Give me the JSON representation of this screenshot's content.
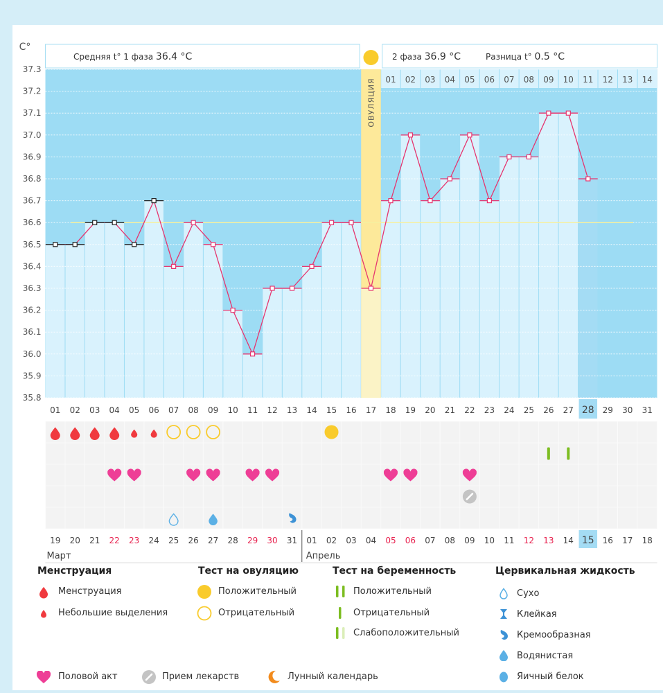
{
  "chart_data": {
    "type": "line",
    "ylabel": "C°",
    "ylim": [
      35.8,
      37.3
    ],
    "yticks": [
      "37.3",
      "37.2",
      "37.1",
      "37.0",
      "36.9",
      "36.8",
      "36.7",
      "36.6",
      "36.5",
      "36.4",
      "36.3",
      "36.2",
      "36.1",
      "36.0",
      "35.9",
      "35.8"
    ],
    "cycle_days": [
      "01",
      "02",
      "03",
      "04",
      "05",
      "06",
      "07",
      "08",
      "09",
      "10",
      "11",
      "12",
      "13",
      "14",
      "15",
      "16",
      "17",
      "18",
      "19",
      "20",
      "21",
      "22",
      "23",
      "24",
      "25",
      "26",
      "27",
      "28",
      "29",
      "30",
      "31"
    ],
    "temperatures": [
      36.5,
      36.5,
      36.6,
      36.6,
      36.5,
      36.7,
      36.4,
      36.6,
      36.5,
      36.2,
      36.0,
      36.3,
      36.3,
      36.4,
      36.6,
      36.6,
      36.3,
      36.7,
      37.0,
      36.7,
      36.8,
      37.0,
      36.7,
      36.9,
      36.9,
      37.1,
      37.1,
      36.8
    ],
    "coverline": 36.6,
    "ovulation_day": "17",
    "ovulation_label": "ОВУЛЯЦИЯ",
    "phase1_label": "Средняя t° 1 фаза",
    "phase1_value": "36.4 °C",
    "phase2_label": "2 фаза",
    "phase2_value": "36.9 °C",
    "diff_label": "Разница t°",
    "diff_value": "0.5 °C",
    "phase2_days": [
      "01",
      "02",
      "03",
      "04",
      "05",
      "06",
      "07",
      "08",
      "09",
      "10",
      "11",
      "12",
      "13",
      "14"
    ],
    "today_cycle_day": "28",
    "calendar_dates": [
      "19",
      "20",
      "21",
      "22",
      "23",
      "24",
      "25",
      "26",
      "27",
      "28",
      "29",
      "30",
      "31",
      "01",
      "02",
      "03",
      "04",
      "05",
      "06",
      "07",
      "08",
      "09",
      "10",
      "11",
      "12",
      "13",
      "14",
      "15",
      "16",
      "17",
      "18"
    ],
    "red_dates": [
      "22",
      "23",
      "29",
      "30",
      "05",
      "06",
      "12",
      "13"
    ],
    "today_date": "15",
    "month_march": "Март",
    "month_april": "Апрель",
    "menstruation": {
      "heavy": [
        "01",
        "02",
        "03",
        "04"
      ],
      "light": [
        "05",
        "06"
      ]
    },
    "ovulation_test": {
      "positive": [
        "15"
      ],
      "negative": [
        "07",
        "08",
        "09"
      ]
    },
    "pregnancy_test": {
      "negative": [
        "26",
        "27"
      ]
    },
    "intercourse": [
      "04",
      "05",
      "08",
      "09",
      "11",
      "12",
      "18",
      "19",
      "22"
    ],
    "medication": [
      "22"
    ],
    "cervical_fluid": {
      "dry": [
        "07"
      ],
      "watery": [
        "09"
      ],
      "creamy": [
        "13"
      ]
    },
    "colors": {
      "phase_bg": "#9ddcf4",
      "bar": "#d9f2fd",
      "today_bar": "#a4dcf4",
      "line": "#e6356f",
      "ovulation": "#fde99a",
      "coverline": "#f6f0a0",
      "blood": "#f03a3f",
      "heart": "#ee3e96",
      "green": "#7cbd21",
      "water": "#5bb0e5"
    }
  },
  "legend": {
    "menstruation": {
      "title": "Менструация",
      "heavy": "Менструация",
      "light": "Небольшие выделения"
    },
    "ovulation_test": {
      "title": "Тест на овуляцию",
      "positive": "Положительный",
      "negative": "Отрицательный"
    },
    "pregnancy_test": {
      "title": "Тест на беременность",
      "positive": "Положительный",
      "negative": "Отрицательный",
      "weak": "Слабоположительный"
    },
    "cervical": {
      "title": "Цервикальная жидкость",
      "dry": "Сухо",
      "sticky": "Клейкая",
      "creamy": "Кремообразная",
      "watery": "Водянистая",
      "eggwhite": "Яичный белок"
    },
    "intercourse": "Половой акт",
    "medication": "Прием лекарств",
    "moon": "Лунный календарь"
  }
}
